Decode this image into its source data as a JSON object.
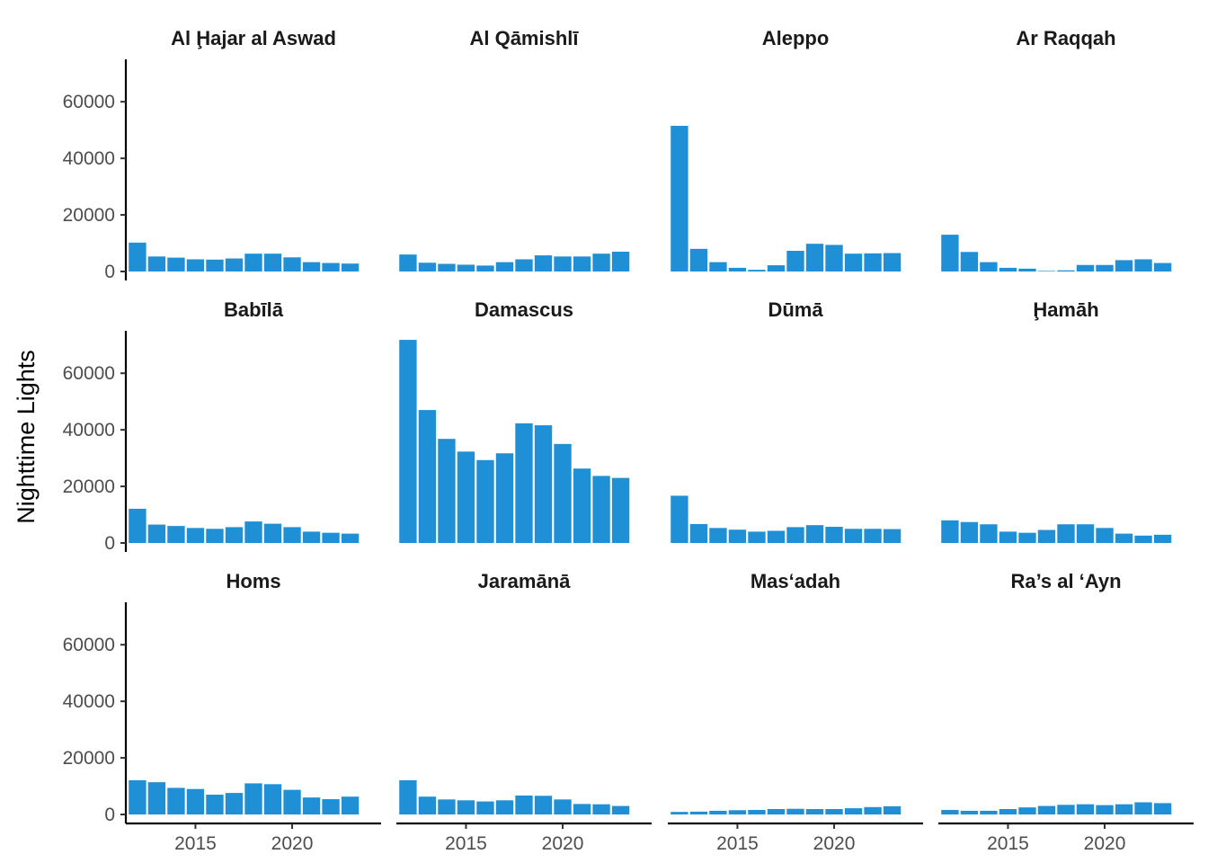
{
  "chart_data": {
    "type": "bar",
    "layout": "facet-grid 3 rows x 4 columns",
    "ylabel": "Nighttime Lights",
    "xlabel": "",
    "x": [
      2012,
      2013,
      2014,
      2015,
      2016,
      2017,
      2018,
      2019,
      2020,
      2021,
      2022,
      2023
    ],
    "ylim": [
      0,
      75000
    ],
    "xlim": [
      2011.4,
      2024.6
    ],
    "y_ticks": [
      0,
      20000,
      40000,
      60000
    ],
    "x_ticks": [
      2015,
      2020
    ],
    "bar_color": "#1F90D6",
    "grid": false,
    "panels": [
      {
        "title": "Al Ḩajar al Aswad",
        "values": [
          10200,
          5300,
          4900,
          4300,
          4200,
          4600,
          6300,
          6300,
          5000,
          3300,
          3000,
          2800
        ]
      },
      {
        "title": "Al Qāmishlī",
        "values": [
          6000,
          3100,
          2700,
          2400,
          2100,
          3300,
          4300,
          5700,
          5300,
          5300,
          6300,
          7000
        ]
      },
      {
        "title": "Aleppo",
        "values": [
          51500,
          8000,
          3300,
          1300,
          600,
          2200,
          7300,
          9800,
          9400,
          6300,
          6400,
          6500
        ]
      },
      {
        "title": "Ar Raqqah",
        "values": [
          13000,
          6900,
          3300,
          1300,
          1000,
          200,
          400,
          2300,
          2300,
          4000,
          4300,
          3000
        ]
      },
      {
        "title": "Babīlā",
        "values": [
          12100,
          6500,
          6000,
          5300,
          5000,
          5600,
          7600,
          6800,
          5600,
          4000,
          3600,
          3300
        ]
      },
      {
        "title": "Damascus",
        "values": [
          71800,
          47000,
          36800,
          32300,
          29300,
          31700,
          42300,
          41600,
          35000,
          26300,
          23700,
          23000
        ]
      },
      {
        "title": "Dūmā",
        "values": [
          16700,
          6700,
          5300,
          4700,
          4000,
          4300,
          5600,
          6300,
          5700,
          5000,
          5000,
          4900
        ]
      },
      {
        "title": "Ḩamāh",
        "values": [
          8000,
          7400,
          6600,
          4000,
          3600,
          4600,
          6600,
          6600,
          5300,
          3300,
          2600,
          2900
        ]
      },
      {
        "title": "Homs",
        "values": [
          12100,
          11400,
          9400,
          9000,
          7000,
          7600,
          11000,
          10700,
          8700,
          6000,
          5400,
          6300
        ]
      },
      {
        "title": "Jaramānā",
        "values": [
          12100,
          6300,
          5300,
          5000,
          4600,
          5000,
          6700,
          6600,
          5300,
          3700,
          3600,
          3000
        ]
      },
      {
        "title": "Mas‘adah",
        "values": [
          900,
          1000,
          1300,
          1500,
          1600,
          1900,
          2000,
          1900,
          1900,
          2200,
          2600,
          2900
        ]
      },
      {
        "title": "Ra’s al ‘Ayn",
        "values": [
          1600,
          1300,
          1300,
          1900,
          2500,
          3000,
          3400,
          3600,
          3300,
          3600,
          4300,
          4000
        ]
      }
    ]
  }
}
